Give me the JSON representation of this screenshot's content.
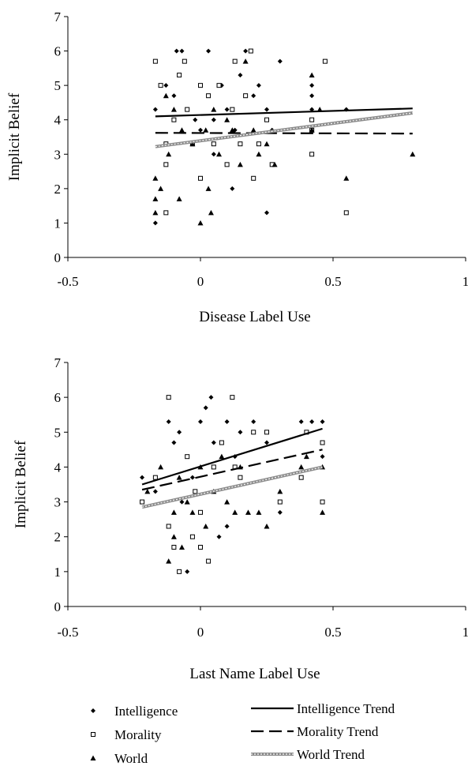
{
  "legend": {
    "items": [
      {
        "label": "Intelligence",
        "marker": "diamond"
      },
      {
        "label": "Morality",
        "marker": "square-open"
      },
      {
        "label": "World",
        "marker": "triangle"
      },
      {
        "label": "Intelligence Trend",
        "line": "solid"
      },
      {
        "label": "Morality Trend",
        "line": "dashed"
      },
      {
        "label": "World Trend",
        "line": "gray-double"
      }
    ]
  },
  "chart_data": [
    {
      "type": "scatter",
      "xlabel": "Disease Label Use",
      "ylabel": "Implicit Belief",
      "xlim": [
        -0.5,
        1
      ],
      "ylim": [
        0,
        7
      ],
      "xticks": [
        "-0.5",
        "0",
        "0.5",
        "1"
      ],
      "yticks": [
        "0",
        "1",
        "2",
        "3",
        "4",
        "5",
        "6",
        "7"
      ],
      "series": [
        {
          "name": "Intelligence",
          "marker": "diamond",
          "points": [
            [
              -0.17,
              1.0
            ],
            [
              -0.17,
              4.3
            ],
            [
              -0.13,
              5.0
            ],
            [
              -0.09,
              6.0
            ],
            [
              -0.07,
              6.0
            ],
            [
              -0.1,
              4.7
            ],
            [
              -0.05,
              4.3
            ],
            [
              -0.02,
              4.0
            ],
            [
              0.0,
              3.7
            ],
            [
              0.03,
              6.0
            ],
            [
              0.05,
              4.0
            ],
            [
              0.08,
              5.0
            ],
            [
              0.1,
              4.3
            ],
            [
              0.13,
              3.7
            ],
            [
              0.15,
              5.3
            ],
            [
              0.17,
              6.0
            ],
            [
              0.2,
              4.7
            ],
            [
              0.22,
              5.0
            ],
            [
              0.25,
              4.3
            ],
            [
              0.27,
              3.7
            ],
            [
              0.3,
              5.7
            ],
            [
              0.42,
              5.0
            ],
            [
              0.42,
              4.7
            ],
            [
              0.42,
              4.3
            ],
            [
              0.55,
              4.3
            ],
            [
              0.25,
              1.3
            ],
            [
              0.12,
              2.0
            ],
            [
              0.05,
              3.0
            ]
          ]
        },
        {
          "name": "Morality",
          "marker": "square-open",
          "points": [
            [
              -0.17,
              5.7
            ],
            [
              -0.15,
              5.0
            ],
            [
              -0.13,
              3.3
            ],
            [
              -0.13,
              2.7
            ],
            [
              -0.1,
              4.0
            ],
            [
              -0.08,
              5.3
            ],
            [
              -0.06,
              5.7
            ],
            [
              -0.05,
              4.3
            ],
            [
              -0.03,
              3.3
            ],
            [
              0.0,
              5.0
            ],
            [
              0.0,
              2.3
            ],
            [
              0.03,
              4.7
            ],
            [
              0.05,
              3.3
            ],
            [
              0.07,
              5.0
            ],
            [
              0.1,
              2.7
            ],
            [
              0.12,
              4.3
            ],
            [
              0.13,
              5.7
            ],
            [
              0.15,
              3.3
            ],
            [
              0.17,
              4.7
            ],
            [
              0.2,
              2.3
            ],
            [
              0.22,
              3.3
            ],
            [
              0.25,
              4.0
            ],
            [
              0.27,
              2.7
            ],
            [
              0.42,
              3.7
            ],
            [
              0.42,
              3.0
            ],
            [
              0.42,
              4.0
            ],
            [
              0.47,
              5.7
            ],
            [
              0.55,
              1.3
            ],
            [
              -0.13,
              1.3
            ],
            [
              0.19,
              6.0
            ]
          ]
        },
        {
          "name": "World",
          "marker": "triangle",
          "points": [
            [
              -0.17,
              2.3
            ],
            [
              -0.17,
              1.7
            ],
            [
              -0.17,
              1.3
            ],
            [
              -0.15,
              2.0
            ],
            [
              -0.13,
              4.7
            ],
            [
              -0.12,
              3.0
            ],
            [
              -0.1,
              4.3
            ],
            [
              -0.08,
              1.7
            ],
            [
              -0.07,
              3.7
            ],
            [
              -0.03,
              3.3
            ],
            [
              0.0,
              1.0
            ],
            [
              0.02,
              3.7
            ],
            [
              0.03,
              2.0
            ],
            [
              0.04,
              1.3
            ],
            [
              0.05,
              4.3
            ],
            [
              0.07,
              3.0
            ],
            [
              0.1,
              4.0
            ],
            [
              0.12,
              3.7
            ],
            [
              0.15,
              2.7
            ],
            [
              0.17,
              5.7
            ],
            [
              0.2,
              3.7
            ],
            [
              0.22,
              3.0
            ],
            [
              0.25,
              3.3
            ],
            [
              0.28,
              2.7
            ],
            [
              0.42,
              5.3
            ],
            [
              0.45,
              4.3
            ],
            [
              0.55,
              2.3
            ],
            [
              0.8,
              3.0
            ],
            [
              0.42,
              3.7
            ]
          ]
        }
      ],
      "trends": [
        {
          "name": "Intelligence Trend",
          "style": "solid",
          "x": [
            -0.17,
            0.8
          ],
          "y": [
            4.1,
            4.33
          ]
        },
        {
          "name": "Morality Trend",
          "style": "dashed",
          "x": [
            -0.17,
            0.8
          ],
          "y": [
            3.62,
            3.6
          ]
        },
        {
          "name": "World Trend",
          "style": "gray-double",
          "x": [
            -0.17,
            0.8
          ],
          "y": [
            3.22,
            4.2
          ]
        }
      ]
    },
    {
      "type": "scatter",
      "xlabel": "Last Name Label Use",
      "ylabel": "Implicit Belief",
      "xlim": [
        -0.5,
        1
      ],
      "ylim": [
        0,
        7
      ],
      "xticks": [
        "-0.5",
        "0",
        "0.5",
        "1"
      ],
      "yticks": [
        "0",
        "1",
        "2",
        "3",
        "4",
        "5",
        "6",
        "7"
      ],
      "series": [
        {
          "name": "Intelligence",
          "marker": "diamond",
          "points": [
            [
              -0.22,
              3.7
            ],
            [
              -0.17,
              3.3
            ],
            [
              -0.12,
              5.3
            ],
            [
              -0.1,
              4.7
            ],
            [
              -0.08,
              5.0
            ],
            [
              -0.05,
              1.0
            ],
            [
              -0.03,
              3.7
            ],
            [
              0.0,
              5.3
            ],
            [
              0.02,
              5.7
            ],
            [
              0.04,
              6.0
            ],
            [
              0.05,
              4.7
            ],
            [
              0.07,
              2.0
            ],
            [
              0.1,
              5.3
            ],
            [
              0.13,
              4.3
            ],
            [
              0.15,
              5.0
            ],
            [
              0.2,
              5.3
            ],
            [
              0.25,
              4.7
            ],
            [
              0.3,
              2.7
            ],
            [
              0.38,
              5.3
            ],
            [
              0.42,
              5.3
            ],
            [
              0.46,
              5.3
            ],
            [
              0.46,
              4.3
            ],
            [
              -0.07,
              3.0
            ],
            [
              0.1,
              2.3
            ]
          ]
        },
        {
          "name": "Morality",
          "marker": "square-open",
          "points": [
            [
              -0.22,
              3.0
            ],
            [
              -0.12,
              6.0
            ],
            [
              -0.12,
              2.3
            ],
            [
              -0.1,
              1.7
            ],
            [
              -0.08,
              1.0
            ],
            [
              -0.05,
              4.3
            ],
            [
              -0.03,
              2.0
            ],
            [
              -0.02,
              3.3
            ],
            [
              0.0,
              2.7
            ],
            [
              0.03,
              1.3
            ],
            [
              0.05,
              4.0
            ],
            [
              0.08,
              4.7
            ],
            [
              0.12,
              6.0
            ],
            [
              0.15,
              3.7
            ],
            [
              0.2,
              5.0
            ],
            [
              0.25,
              5.0
            ],
            [
              0.3,
              3.0
            ],
            [
              0.38,
              3.7
            ],
            [
              0.4,
              5.0
            ],
            [
              0.46,
              4.7
            ],
            [
              0.46,
              3.0
            ],
            [
              -0.17,
              3.7
            ],
            [
              0.0,
              1.7
            ],
            [
              0.13,
              4.0
            ]
          ]
        },
        {
          "name": "World",
          "marker": "triangle",
          "points": [
            [
              -0.2,
              3.3
            ],
            [
              -0.15,
              4.0
            ],
            [
              -0.12,
              1.3
            ],
            [
              -0.1,
              2.0
            ],
            [
              -0.08,
              3.7
            ],
            [
              -0.07,
              1.7
            ],
            [
              -0.05,
              3.0
            ],
            [
              -0.03,
              2.7
            ],
            [
              0.0,
              4.0
            ],
            [
              0.02,
              2.3
            ],
            [
              0.05,
              3.3
            ],
            [
              0.08,
              4.3
            ],
            [
              0.1,
              3.0
            ],
            [
              0.13,
              2.7
            ],
            [
              0.15,
              4.0
            ],
            [
              0.18,
              2.7
            ],
            [
              0.22,
              2.7
            ],
            [
              0.25,
              2.3
            ],
            [
              0.3,
              3.3
            ],
            [
              0.38,
              4.0
            ],
            [
              0.4,
              4.3
            ],
            [
              0.46,
              2.7
            ],
            [
              0.46,
              4.0
            ],
            [
              -0.1,
              2.7
            ]
          ]
        }
      ],
      "trends": [
        {
          "name": "Intelligence Trend",
          "style": "solid",
          "x": [
            -0.22,
            0.46
          ],
          "y": [
            3.5,
            5.1
          ]
        },
        {
          "name": "Morality Trend",
          "style": "dashed",
          "x": [
            -0.22,
            0.46
          ],
          "y": [
            3.35,
            4.5
          ]
        },
        {
          "name": "World Trend",
          "style": "gray-double",
          "x": [
            -0.22,
            0.46
          ],
          "y": [
            2.85,
            4.0
          ]
        }
      ]
    }
  ]
}
